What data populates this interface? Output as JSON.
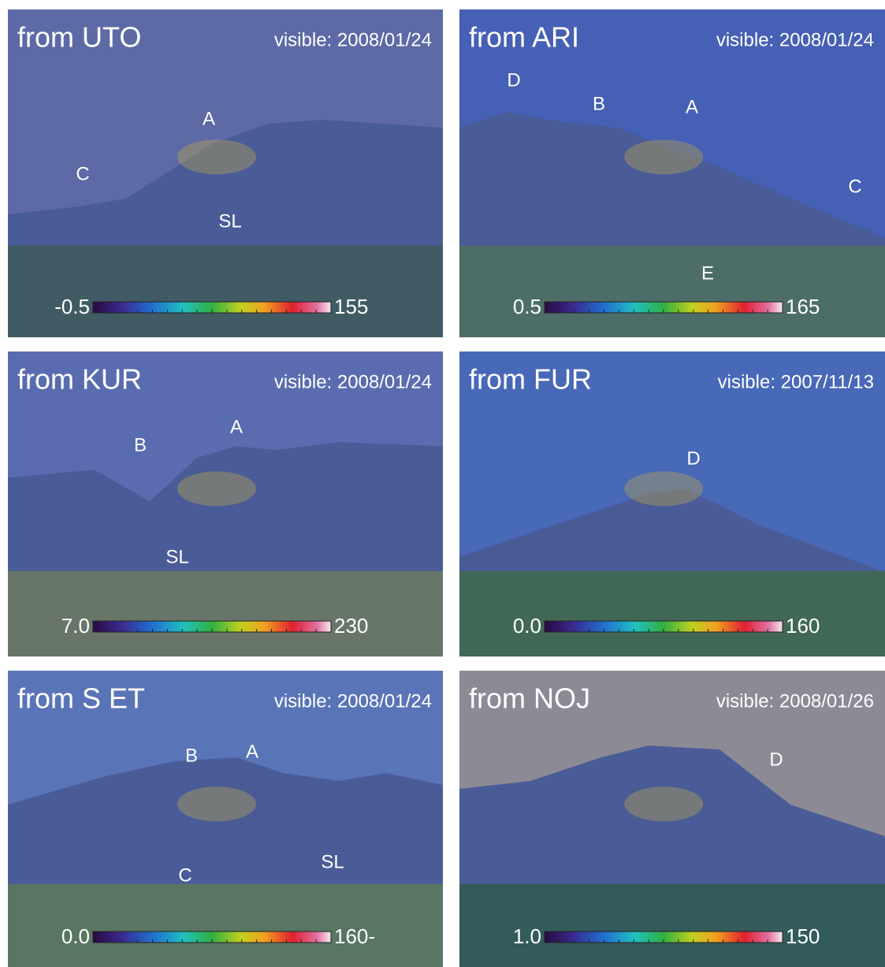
{
  "panels": [
    {
      "title": "from UTO",
      "date": "visible: 2008/01/24",
      "annotations": [
        "A",
        "C",
        "SL"
      ],
      "scale_min": "-0.5",
      "scale_max": "155"
    },
    {
      "title": "from ARI",
      "date": "visible: 2008/01/24",
      "annotations": [
        "D",
        "B",
        "A",
        "C",
        "E"
      ],
      "scale_min": "0.5",
      "scale_max": "165"
    },
    {
      "title": "from KUR",
      "date": "visible: 2008/01/24",
      "annotations": [
        "B",
        "A",
        "SL"
      ],
      "scale_min": "7.0",
      "scale_max": "230"
    },
    {
      "title": "from FUR",
      "date": "visible: 2007/11/13",
      "annotations": [
        "D"
      ],
      "scale_min": "0.0",
      "scale_max": "160"
    },
    {
      "title": "from S ET",
      "date": "visible: 2008/01/24",
      "annotations": [
        "B",
        "A",
        "SL",
        "C"
      ],
      "scale_min": "0.0",
      "scale_max": "160-"
    },
    {
      "title": "from NOJ",
      "date": "visible: 2008/01/26",
      "annotations": [
        "D"
      ],
      "scale_min": "1.0",
      "scale_max": "150"
    }
  ]
}
